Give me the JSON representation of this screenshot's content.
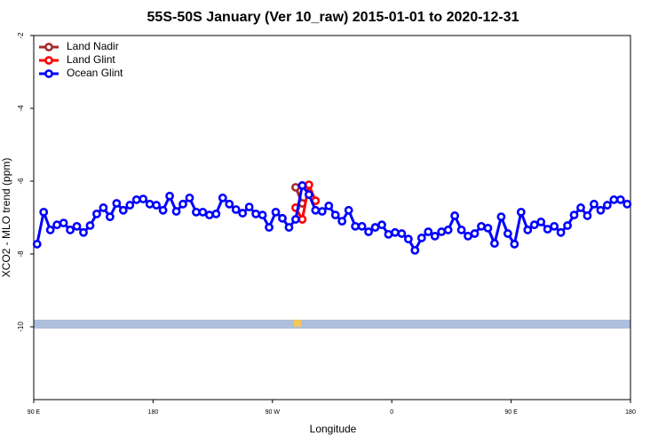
{
  "chart_data": {
    "type": "line",
    "title": "55S-50S January (Ver 10_raw)   2015-01-01 to 2020-12-31",
    "x_label": "Longitude",
    "y_label": "XCO2 - MLO trend (ppm)",
    "xlim": [
      90,
      540
    ],
    "ylim": [
      -12,
      -2
    ],
    "xticks": [
      {
        "value": 90,
        "label": "90 E"
      },
      {
        "value": 180,
        "label": "180"
      },
      {
        "value": 270,
        "label": "90 W"
      },
      {
        "value": 360,
        "label": "0"
      },
      {
        "value": 450,
        "label": "90 E"
      },
      {
        "value": 540,
        "label": "180"
      }
    ],
    "yticks": [
      -2,
      -4,
      -6,
      -8,
      -10
    ],
    "legend": "top-left",
    "series": [
      {
        "name": "Land Nadir",
        "color": "#a52a2a",
        "x": [
          287.5,
          292.5
        ],
        "values": [
          -6.17,
          -6.61
        ]
      },
      {
        "name": "Land Glint",
        "color": "#ff0000",
        "x": [
          287.5,
          292.5,
          297.5,
          302.5
        ],
        "values": [
          -6.73,
          -7.05,
          -6.1,
          -6.54
        ]
      },
      {
        "name": "Ocean Glint",
        "color": "#0000ff",
        "x": [
          92.5,
          97.5,
          102.5,
          107.5,
          112.5,
          117.5,
          122.5,
          127.5,
          132.5,
          137.5,
          142.5,
          147.5,
          152.5,
          157.5,
          162.5,
          167.5,
          172.5,
          177.5,
          182.5,
          187.5,
          192.5,
          197.5,
          202.5,
          207.5,
          212.5,
          217.5,
          222.5,
          227.5,
          232.5,
          237.5,
          242.5,
          247.5,
          252.5,
          257.5,
          262.5,
          267.5,
          272.5,
          277.5,
          282.5,
          287.5,
          292.5,
          297.5,
          302.5,
          307.5,
          312.5,
          317.5,
          322.5,
          327.5,
          332.5,
          337.5,
          342.5,
          347.5,
          352.5,
          357.5,
          362.5,
          367.5,
          372.5,
          377.5,
          382.5,
          387.5,
          392.5,
          397.5,
          402.5,
          407.5,
          412.5,
          417.5,
          422.5,
          427.5,
          432.5,
          437.5,
          442.5,
          447.5,
          452.5,
          457.5,
          462.5,
          467.5,
          472.5,
          477.5,
          482.5,
          487.5,
          492.5,
          497.5,
          502.5,
          507.5,
          512.5,
          517.5,
          522.5,
          527.5,
          532.5,
          537.5
        ],
        "values": [
          -7.73,
          -6.85,
          -7.34,
          -7.2,
          -7.15,
          -7.34,
          -7.24,
          -7.41,
          -7.22,
          -6.9,
          -6.73,
          -6.98,
          -6.61,
          -6.8,
          -6.66,
          -6.51,
          -6.49,
          -6.63,
          -6.66,
          -6.8,
          -6.41,
          -6.83,
          -6.63,
          -6.46,
          -6.85,
          -6.85,
          -6.93,
          -6.9,
          -6.46,
          -6.63,
          -6.78,
          -6.88,
          -6.71,
          -6.9,
          -6.93,
          -7.27,
          -6.85,
          -7.02,
          -7.27,
          -7.05,
          -6.12,
          -6.37,
          -6.8,
          -6.83,
          -6.68,
          -6.93,
          -7.1,
          -6.8,
          -7.24,
          -7.24,
          -7.39,
          -7.27,
          -7.2,
          -7.46,
          -7.41,
          -7.44,
          -7.59,
          -7.9,
          -7.56,
          -7.39,
          -7.51,
          -7.39,
          -7.34,
          -6.95,
          -7.34,
          -7.51,
          -7.44,
          -7.24,
          -7.29,
          -7.71,
          -6.98,
          -7.44,
          -7.73,
          -6.85,
          -7.34,
          -7.2,
          -7.12,
          -7.32,
          -7.24,
          -7.41,
          -7.22,
          -6.93,
          -6.73,
          -6.95,
          -6.63,
          -6.8,
          -6.66,
          -6.51,
          -6.51,
          -6.63
        ]
      }
    ]
  }
}
